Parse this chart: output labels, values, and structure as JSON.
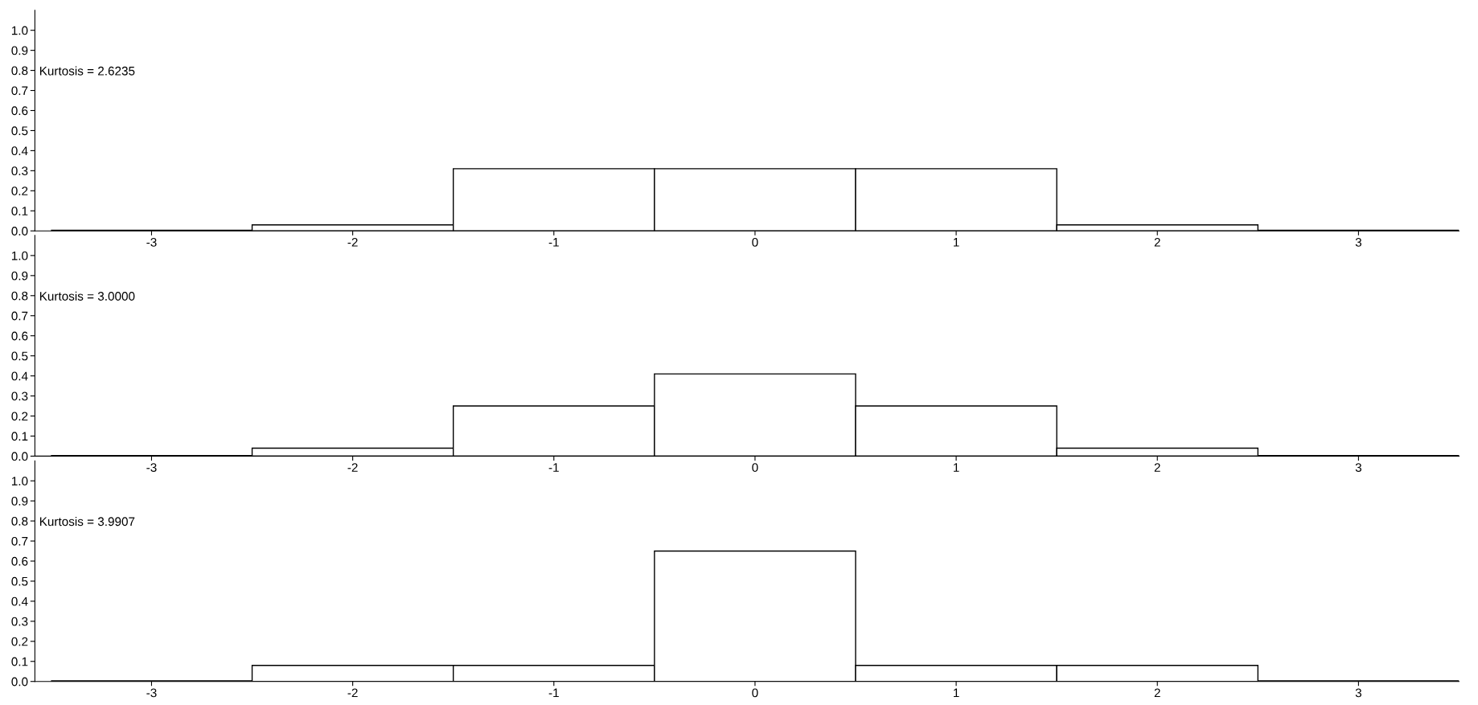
{
  "chart_data": [
    {
      "type": "histogram",
      "bins": [
        -3.5,
        -2.5,
        -1.5,
        -0.5,
        0.5,
        1.5,
        2.5,
        3.5
      ],
      "values": [
        0,
        0.03,
        0.31,
        0.31,
        0.31,
        0.03,
        0
      ],
      "colors": [
        "#000000",
        "#ffffff",
        "#ffffff",
        "#ffffff",
        "#ffffff",
        "#ffffff",
        "#000000"
      ],
      "xlim": [
        -3.58,
        3.5
      ],
      "ylim": [
        0,
        1.1
      ],
      "xticks": [
        -3,
        -2,
        -1,
        0,
        1,
        2,
        3
      ],
      "yticks": [
        {
          "value": 0,
          "label": "0.0"
        },
        {
          "value": 0.1,
          "label": "0.1"
        },
        {
          "value": 0.2,
          "label": "0.2"
        },
        {
          "value": 0.3,
          "label": "0.3"
        },
        {
          "value": 0.4,
          "label": "0.4"
        },
        {
          "value": 0.5,
          "label": "0.5"
        },
        {
          "value": 0.6,
          "label": "0.6"
        },
        {
          "value": 0.7,
          "label": "0.7"
        },
        {
          "value": 0.8,
          "label": "0.8"
        },
        {
          "value": 0.9,
          "label": "0.9"
        },
        {
          "value": 1,
          "label": "1.0"
        }
      ],
      "annotations": [
        "Kurtosis = 2.6235"
      ]
    },
    {
      "type": "histogram",
      "bins": [
        -3.5,
        -2.5,
        -1.5,
        -0.5,
        0.5,
        1.5,
        2.5,
        3.5
      ],
      "values": [
        0,
        0.04,
        0.25,
        0.41,
        0.25,
        0.04,
        0
      ],
      "colors": [
        "#000000",
        "#ffffff",
        "#ffffff",
        "#ffffff",
        "#ffffff",
        "#ffffff",
        "#000000"
      ],
      "xlim": [
        -3.58,
        3.5
      ],
      "ylim": [
        0,
        1.1
      ],
      "xticks": [
        -3,
        -2,
        -1,
        0,
        1,
        2,
        3
      ],
      "yticks": [
        {
          "value": 0,
          "label": "0.0"
        },
        {
          "value": 0.1,
          "label": "0.1"
        },
        {
          "value": 0.2,
          "label": "0.2"
        },
        {
          "value": 0.3,
          "label": "0.3"
        },
        {
          "value": 0.4,
          "label": "0.4"
        },
        {
          "value": 0.5,
          "label": "0.5"
        },
        {
          "value": 0.6,
          "label": "0.6"
        },
        {
          "value": 0.7,
          "label": "0.7"
        },
        {
          "value": 0.8,
          "label": "0.8"
        },
        {
          "value": 0.9,
          "label": "0.9"
        },
        {
          "value": 1,
          "label": "1.0"
        }
      ],
      "annotations": [
        "Kurtosis = 3.0000"
      ]
    },
    {
      "type": "histogram",
      "bins": [
        -3.5,
        -2.5,
        -1.5,
        -0.5,
        0.5,
        1.5,
        2.5,
        3.5
      ],
      "values": [
        0,
        0.08,
        0.08,
        0.65,
        0.08,
        0.08,
        0
      ],
      "colors": [
        "#000000",
        "#ffffff",
        "#ffffff",
        "#ffffff",
        "#ffffff",
        "#ffffff",
        "#000000"
      ],
      "xlim": [
        -3.58,
        3.5
      ],
      "ylim": [
        0,
        1.1
      ],
      "xticks": [
        -3,
        -2,
        -1,
        0,
        1,
        2,
        3
      ],
      "yticks": [
        {
          "value": 0,
          "label": "0.0"
        },
        {
          "value": 0.1,
          "label": "0.1"
        },
        {
          "value": 0.2,
          "label": "0.2"
        },
        {
          "value": 0.3,
          "label": "0.3"
        },
        {
          "value": 0.4,
          "label": "0.4"
        },
        {
          "value": 0.5,
          "label": "0.5"
        },
        {
          "value": 0.6,
          "label": "0.6"
        },
        {
          "value": 0.7,
          "label": "0.7"
        },
        {
          "value": 0.8,
          "label": "0.8"
        },
        {
          "value": 0.9,
          "label": "0.9"
        },
        {
          "value": 1,
          "label": "1.0"
        }
      ],
      "annotations": [
        "Kurtosis = 3.9907"
      ]
    }
  ]
}
